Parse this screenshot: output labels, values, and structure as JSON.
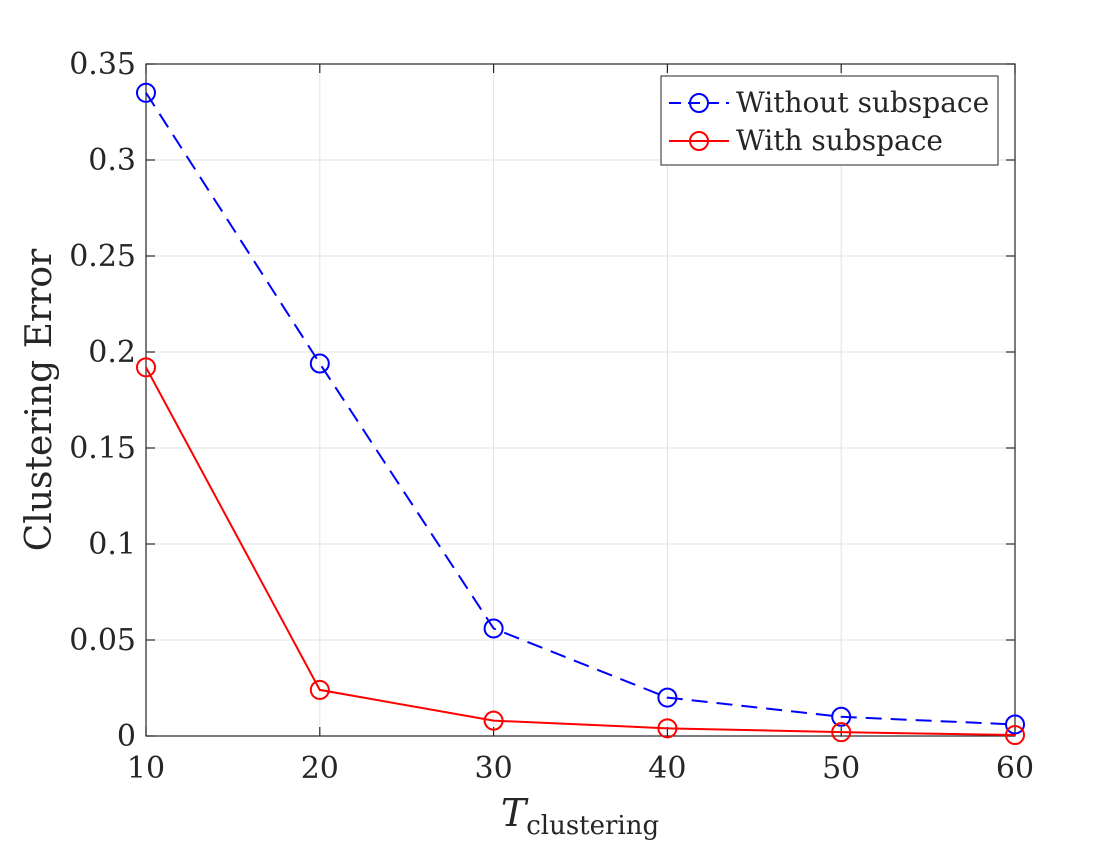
{
  "chart_data": {
    "type": "line",
    "x": [
      10,
      20,
      30,
      40,
      50,
      60
    ],
    "series": [
      {
        "name": "Without subspace",
        "values": [
          0.335,
          0.194,
          0.056,
          0.02,
          0.01,
          0.006
        ],
        "color": "#0000ff",
        "line_style": "dashed",
        "marker": "circle"
      },
      {
        "name": "With subspace",
        "values": [
          0.192,
          0.024,
          0.008,
          0.004,
          0.002,
          0.0005
        ],
        "color": "#ff0000",
        "line_style": "solid",
        "marker": "circle"
      }
    ],
    "xlabel": {
      "main": "T",
      "subscript": "clustering"
    },
    "ylabel": "Clustering Error",
    "xlim": [
      10,
      60
    ],
    "ylim": [
      0,
      0.35
    ],
    "x_ticks": [
      "10",
      "20",
      "30",
      "40",
      "50",
      "60"
    ],
    "y_ticks": [
      "0",
      "0.05",
      "0.1",
      "0.15",
      "0.2",
      "0.25",
      "0.3",
      "0.35"
    ],
    "grid": true,
    "legend_position": "top-right"
  }
}
